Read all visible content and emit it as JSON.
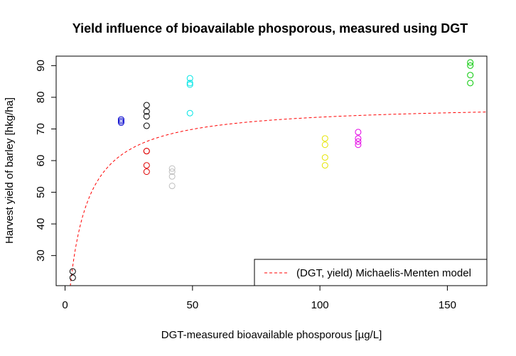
{
  "chart_data": {
    "type": "scatter",
    "title": "Yield influence of bioavailable phosporous, measured using DGT",
    "xlabel": "DGT-measured bioavailable phosporous [µg/L]",
    "ylabel": "Harvest yield of barley [hkg/ha]",
    "xlim": [
      -3.5,
      165.5
    ],
    "ylim": [
      20.5,
      93
    ],
    "xticks": [
      0,
      50,
      100,
      150
    ],
    "yticks": [
      30,
      40,
      50,
      60,
      70,
      80,
      90
    ],
    "grid": false,
    "legend_position": "bottom-right",
    "series": [
      {
        "color": "#000000",
        "points": [
          [
            3,
            25
          ],
          [
            3,
            23
          ]
        ]
      },
      {
        "color": "#0000cd",
        "points": [
          [
            22,
            73
          ],
          [
            22,
            72.5
          ],
          [
            22,
            72
          ]
        ]
      },
      {
        "color": "#000000",
        "points": [
          [
            32,
            77.5
          ],
          [
            32,
            75.5
          ],
          [
            32,
            74
          ],
          [
            32,
            71
          ]
        ]
      },
      {
        "color": "#df0000",
        "points": [
          [
            32,
            63
          ],
          [
            32,
            63
          ],
          [
            32,
            58.5
          ],
          [
            32,
            56.5
          ]
        ]
      },
      {
        "color": "#bebebe",
        "points": [
          [
            42,
            57.5
          ],
          [
            42,
            56.5
          ],
          [
            42,
            55
          ],
          [
            42,
            52
          ]
        ]
      },
      {
        "color": "#00e5e5",
        "points": [
          [
            49,
            86
          ],
          [
            49,
            84.5
          ],
          [
            49,
            84
          ],
          [
            49,
            75
          ]
        ]
      },
      {
        "color": "#e5e500",
        "points": [
          [
            102,
            67
          ],
          [
            102,
            65
          ],
          [
            102,
            61
          ],
          [
            102,
            58.5
          ]
        ]
      },
      {
        "color": "#e500e5",
        "points": [
          [
            115,
            69
          ],
          [
            115,
            67
          ],
          [
            115,
            66
          ],
          [
            115,
            65
          ]
        ]
      },
      {
        "color": "#00c800",
        "points": [
          [
            159,
            91
          ],
          [
            159,
            90
          ],
          [
            159,
            87
          ],
          [
            159,
            84.5
          ]
        ]
      }
    ],
    "curves": [
      {
        "name": "(DGT, yield) Michaelis-Menten model",
        "color": "#ff0000",
        "style": "dashed",
        "vmax": 78,
        "km": 5.8
      }
    ],
    "legend": [
      {
        "label": "(DGT, yield) Michaelis-Menten model",
        "color": "#ff0000",
        "style": "dashed"
      }
    ]
  }
}
